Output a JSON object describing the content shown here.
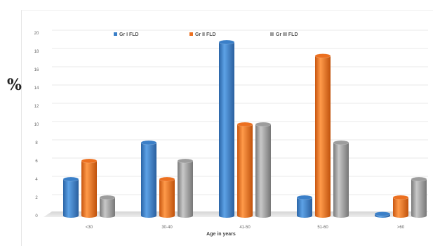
{
  "chart_data": {
    "type": "bar",
    "ylabel": "%",
    "xlabel": "Age in years",
    "categories": [
      "<30",
      "30-40",
      "41-50",
      "51-60",
      ">60"
    ],
    "series": [
      {
        "name": "Gr I FLD",
        "color": "#3a7fc8",
        "values": [
          4,
          8,
          19,
          2,
          0.2
        ]
      },
      {
        "name": "Gr II FLD",
        "color": "#ec7020",
        "values": [
          6,
          4,
          10,
          17.5,
          2
        ]
      },
      {
        "name": "Gr III FLD",
        "color": "#9d9d9d",
        "values": [
          2,
          6,
          10,
          8,
          4
        ]
      }
    ],
    "ylim": [
      0,
      20
    ],
    "yticks": [
      0,
      2,
      4,
      6,
      8,
      10,
      12,
      14,
      16,
      18,
      20
    ],
    "grid": true,
    "legend_position": "top"
  }
}
